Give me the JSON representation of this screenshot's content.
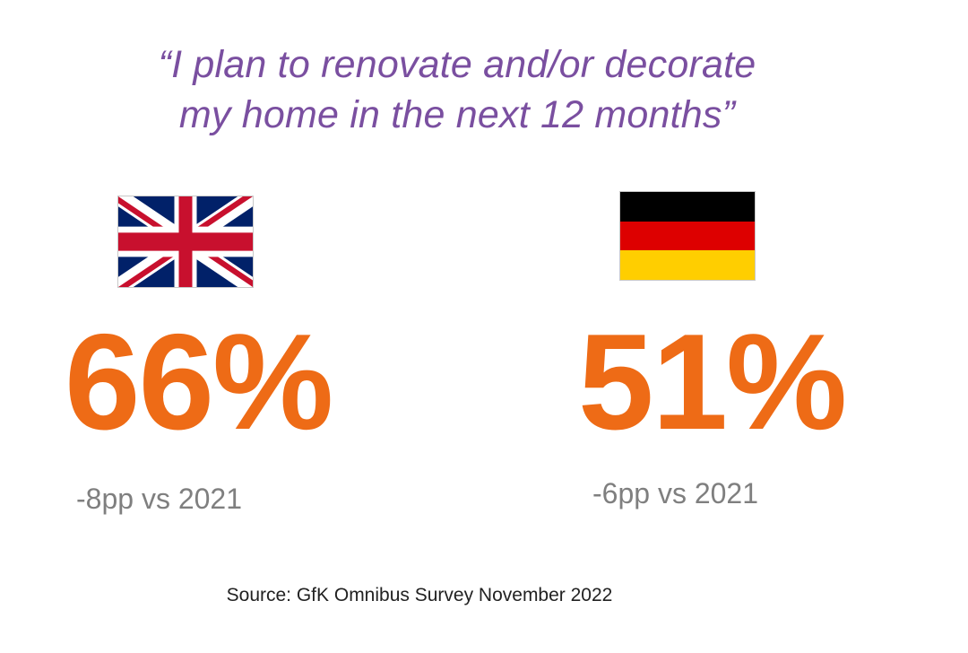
{
  "quote": {
    "line1": "“I plan to renovate and/or decorate",
    "line2": "my home in the next 12 months”"
  },
  "uk": {
    "flag_icon": "uk-flag-icon",
    "value": "66%",
    "change": "-8pp vs 2021",
    "colors": {
      "blue": "#012169",
      "red": "#c8102e",
      "white": "#ffffff"
    }
  },
  "germany": {
    "flag_icon": "germany-flag-icon",
    "value": "51%",
    "change": "-6pp vs 2021",
    "colors": {
      "black": "#000000",
      "red": "#dd0000",
      "gold": "#ffce00"
    }
  },
  "source": "Source: GfK Omnibus Survey November 2022",
  "theme": {
    "quote_color": "#7a4fa0",
    "value_color": "#ee6b16",
    "change_color": "#7f7f7f"
  }
}
